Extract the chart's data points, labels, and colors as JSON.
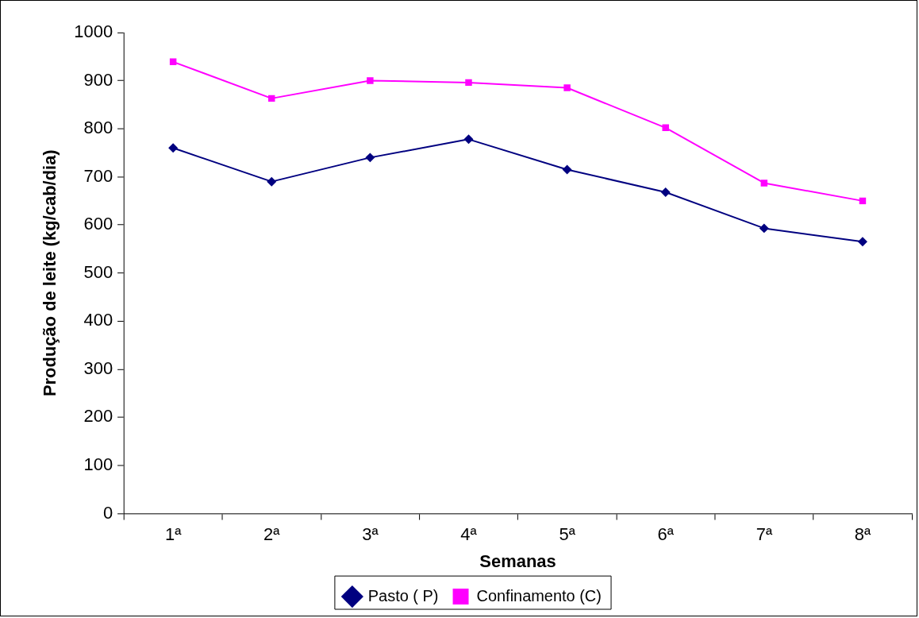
{
  "chart_data": {
    "type": "line",
    "xlabel": "Semanas",
    "ylabel": "Produção de leite (kg/cab/dia)",
    "categories": [
      "1ª",
      "2ª",
      "3ª",
      "4ª",
      "5ª",
      "6ª",
      "7ª",
      "8ª"
    ],
    "series": [
      {
        "name": "Pasto ( P)",
        "color": "#000080",
        "marker": "diamond",
        "values": [
          760,
          690,
          740,
          778,
          715,
          668,
          593,
          565
        ]
      },
      {
        "name": "Confinamento (C)",
        "color": "#ff00ff",
        "marker": "square",
        "values": [
          939,
          863,
          900,
          896,
          885,
          802,
          687,
          650
        ]
      }
    ],
    "ylim": [
      0,
      1000
    ],
    "yticks": [
      0,
      100,
      200,
      300,
      400,
      500,
      600,
      700,
      800,
      900,
      1000
    ],
    "grid": false,
    "legend": "bottom",
    "line_style": "solid"
  }
}
